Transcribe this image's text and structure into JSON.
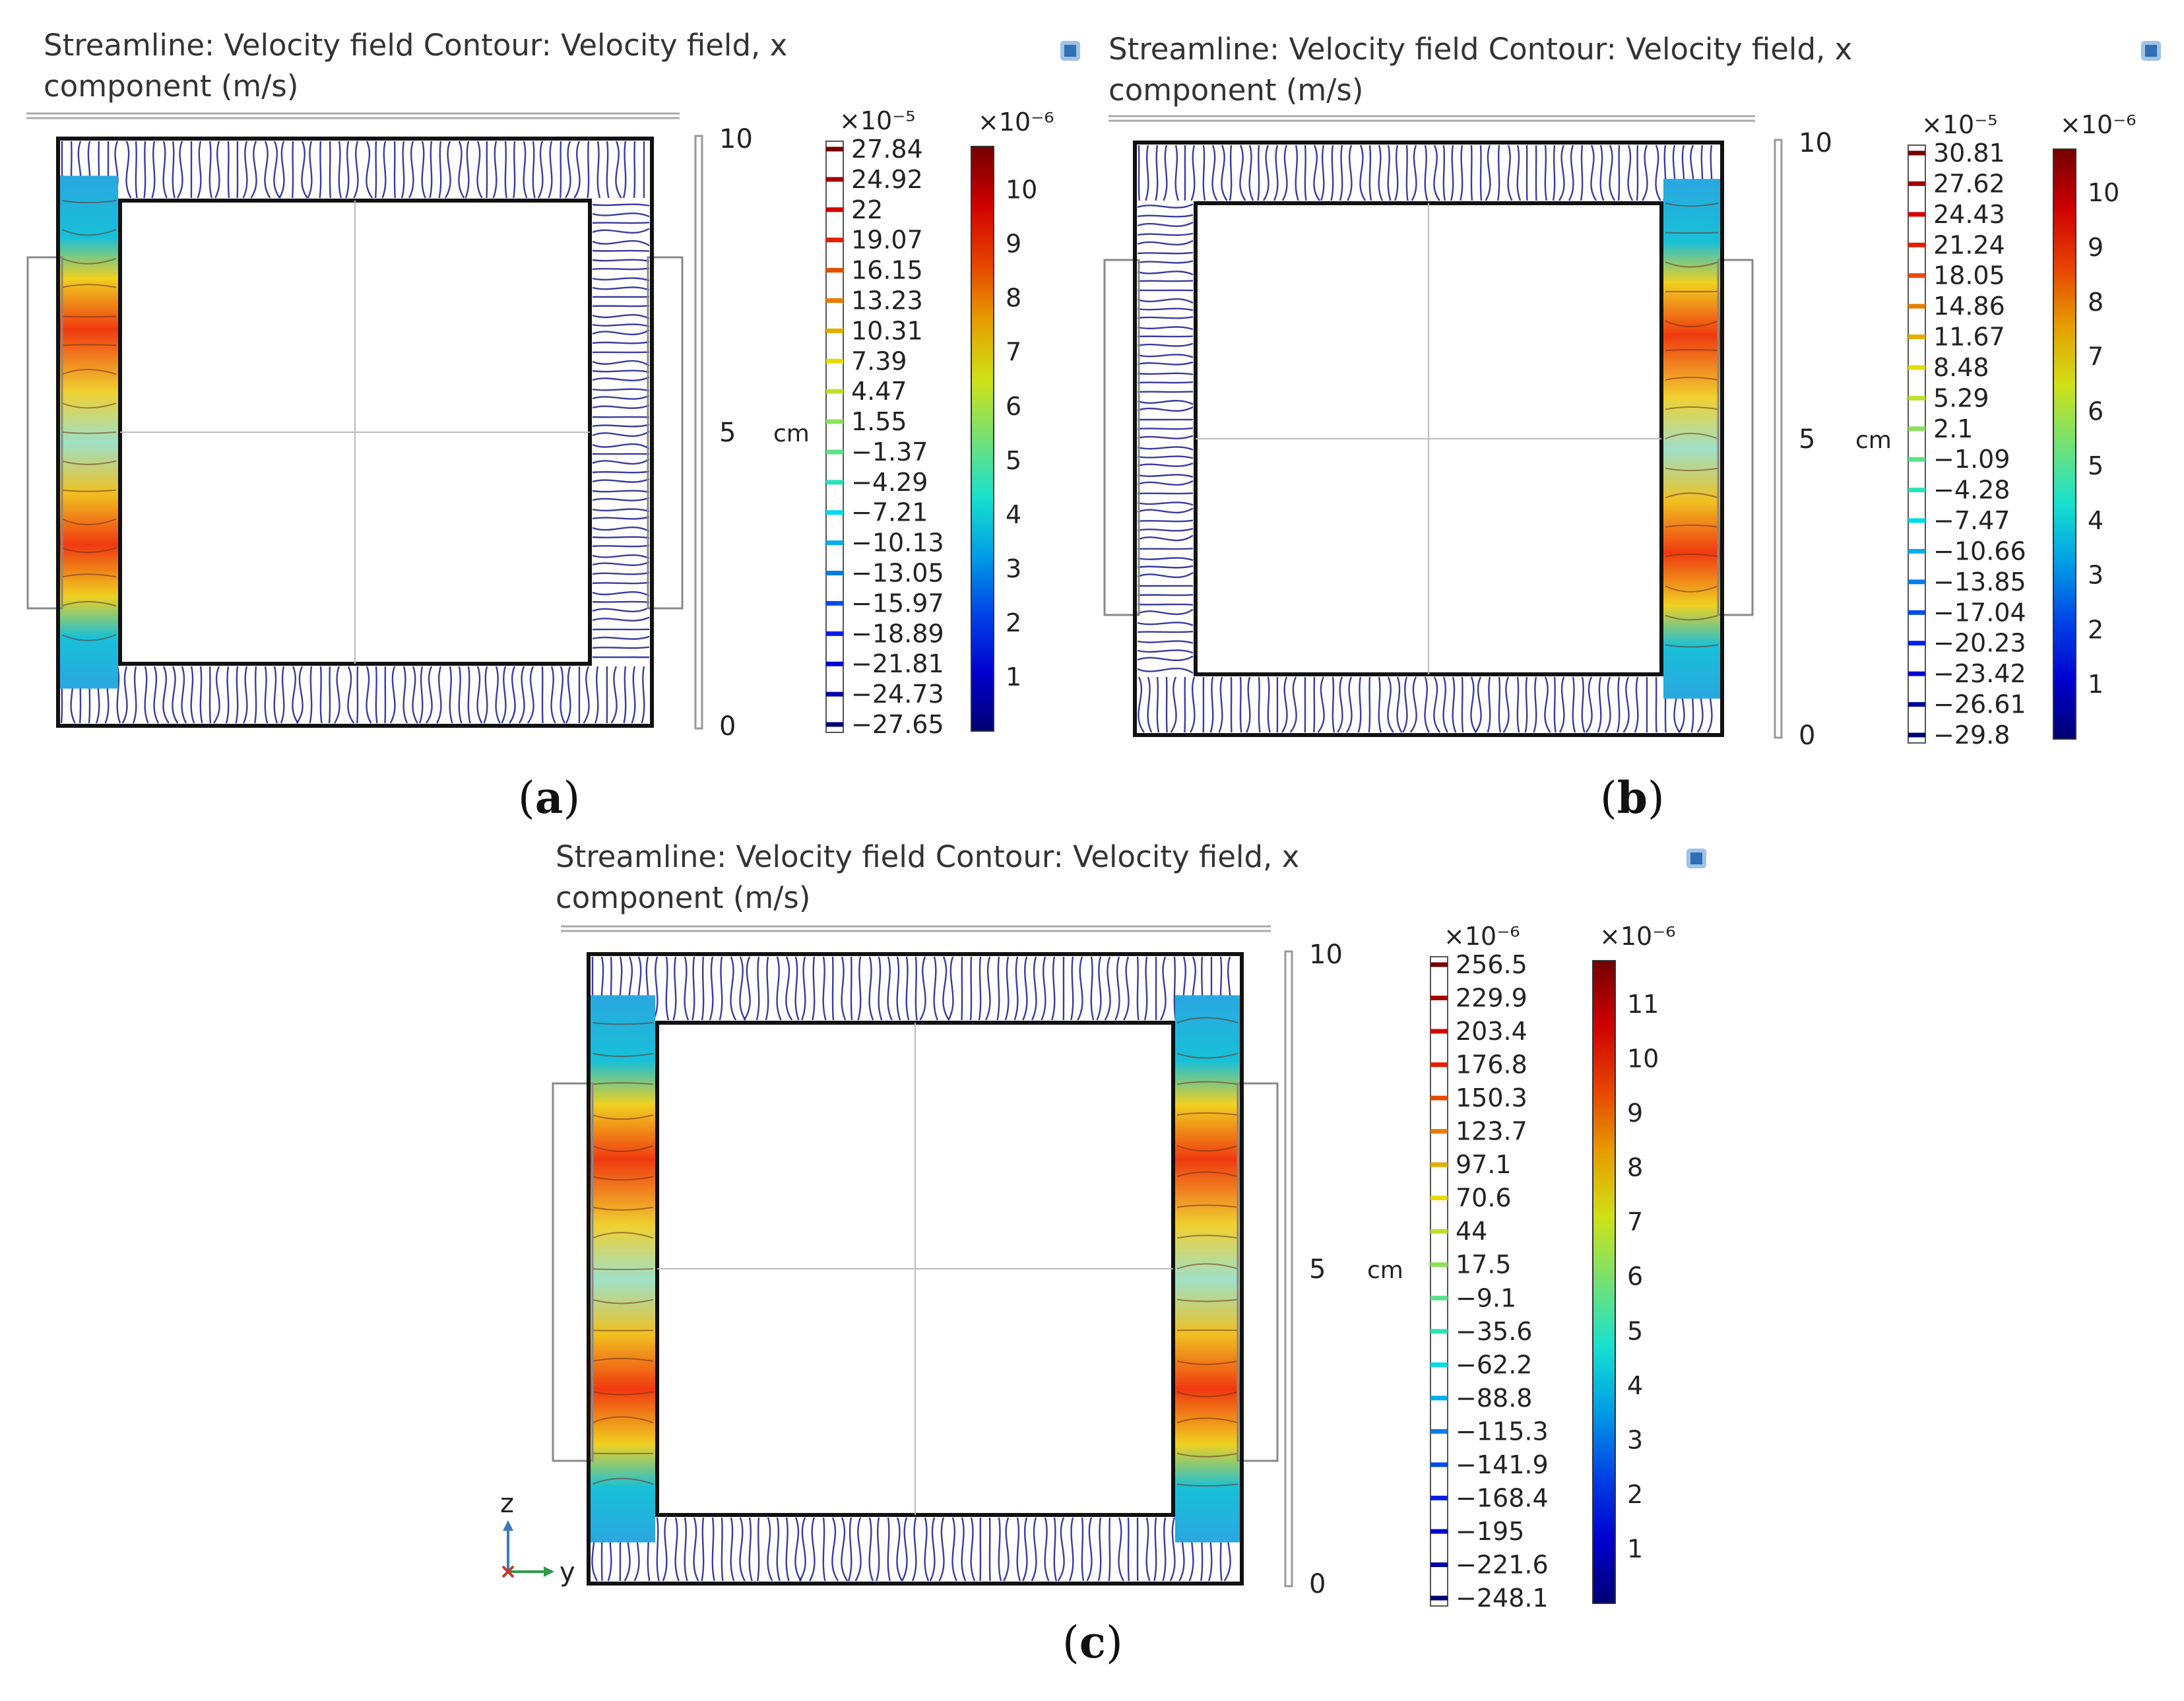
{
  "panels": [
    {
      "caption_letter": "a",
      "title_line1": "Streamline: Velocity field  Contour: Velocity field, x",
      "title_line2": "component (m/s)",
      "active_columns": [
        "left"
      ],
      "axis": {
        "unit": "cm",
        "ticks": [
          "10",
          "5",
          "0"
        ]
      },
      "contour_legend": {
        "multiplier": "×10⁻⁵",
        "labels": [
          "27.84",
          "24.92",
          "22",
          "19.07",
          "16.15",
          "13.23",
          "10.31",
          "7.39",
          "4.47",
          "1.55",
          "−1.37",
          "−4.29",
          "−7.21",
          "−10.13",
          "−13.05",
          "−15.97",
          "−18.89",
          "−21.81",
          "−24.73",
          "−27.65"
        ]
      },
      "color_bar": {
        "multiplier": "×10⁻⁶",
        "labels": [
          "10",
          "9",
          "8",
          "7",
          "6",
          "5",
          "4",
          "3",
          "2",
          "1"
        ]
      }
    },
    {
      "caption_letter": "b",
      "title_line1": "Streamline: Velocity field  Contour: Velocity field, x",
      "title_line2": "component (m/s)",
      "active_columns": [
        "right"
      ],
      "axis": {
        "unit": "cm",
        "ticks": [
          "10",
          "5",
          "0"
        ]
      },
      "contour_legend": {
        "multiplier": "×10⁻⁵",
        "labels": [
          "30.81",
          "27.62",
          "24.43",
          "21.24",
          "18.05",
          "14.86",
          "11.67",
          "8.48",
          "5.29",
          "2.1",
          "−1.09",
          "−4.28",
          "−7.47",
          "−10.66",
          "−13.85",
          "−17.04",
          "−20.23",
          "−23.42",
          "−26.61",
          "−29.8"
        ]
      },
      "color_bar": {
        "multiplier": "×10⁻⁶",
        "labels": [
          "10",
          "9",
          "8",
          "7",
          "6",
          "5",
          "4",
          "3",
          "2",
          "1"
        ]
      }
    },
    {
      "caption_letter": "c",
      "title_line1": "Streamline: Velocity field  Contour: Velocity field, x",
      "title_line2": "component (m/s)",
      "active_columns": [
        "left",
        "right"
      ],
      "axis": {
        "unit": "cm",
        "ticks": [
          "10",
          "5",
          "0"
        ]
      },
      "contour_legend": {
        "multiplier": "×10⁻⁶",
        "labels": [
          "256.5",
          "229.9",
          "203.4",
          "176.8",
          "150.3",
          "123.7",
          "97.1",
          "70.6",
          "44",
          "17.5",
          "−9.1",
          "−35.6",
          "−62.2",
          "−88.8",
          "−115.3",
          "−141.9",
          "−168.4",
          "−195",
          "−221.6",
          "−248.1"
        ]
      },
      "color_bar": {
        "multiplier": "×10⁻⁶",
        "labels": [
          "11",
          "10",
          "9",
          "8",
          "7",
          "6",
          "5",
          "4",
          "3",
          "2",
          "1"
        ]
      }
    }
  ],
  "axis_triad": {
    "z_label": "z",
    "y_label": "y"
  },
  "colors": {
    "streamline": "#1a1a8c",
    "frame": "#111111",
    "gauge": "#999999"
  },
  "chart_data": [
    {
      "type": "heatmap",
      "title": "Streamline: Velocity field  Contour: Velocity field, x component (m/s)",
      "ylabel": "cm",
      "ylim": [
        0,
        10
      ],
      "contour_levels_x1e-5": [
        27.84,
        24.92,
        22,
        19.07,
        16.15,
        13.23,
        10.31,
        7.39,
        4.47,
        1.55,
        -1.37,
        -4.29,
        -7.21,
        -10.13,
        -13.05,
        -15.97,
        -18.89,
        -21.81,
        -24.73,
        -27.65
      ],
      "colorbar_range_x1e-6": [
        0,
        10
      ]
    },
    {
      "type": "heatmap",
      "title": "Streamline: Velocity field  Contour: Velocity field, x component (m/s)",
      "ylabel": "cm",
      "ylim": [
        0,
        10
      ],
      "contour_levels_x1e-5": [
        30.81,
        27.62,
        24.43,
        21.24,
        18.05,
        14.86,
        11.67,
        8.48,
        5.29,
        2.1,
        -1.09,
        -4.28,
        -7.47,
        -10.66,
        -13.85,
        -17.04,
        -20.23,
        -23.42,
        -26.61,
        -29.8
      ],
      "colorbar_range_x1e-6": [
        0,
        10
      ]
    },
    {
      "type": "heatmap",
      "title": "Streamline: Velocity field  Contour: Velocity field, x component (m/s)",
      "ylabel": "cm",
      "ylim": [
        0,
        10
      ],
      "contour_levels_x1e-6": [
        256.5,
        229.9,
        203.4,
        176.8,
        150.3,
        123.7,
        97.1,
        70.6,
        44,
        17.5,
        -9.1,
        -35.6,
        -62.2,
        -88.8,
        -115.3,
        -141.9,
        -168.4,
        -195,
        -221.6,
        -248.1
      ],
      "colorbar_range_x1e-6": [
        0,
        11
      ]
    }
  ]
}
